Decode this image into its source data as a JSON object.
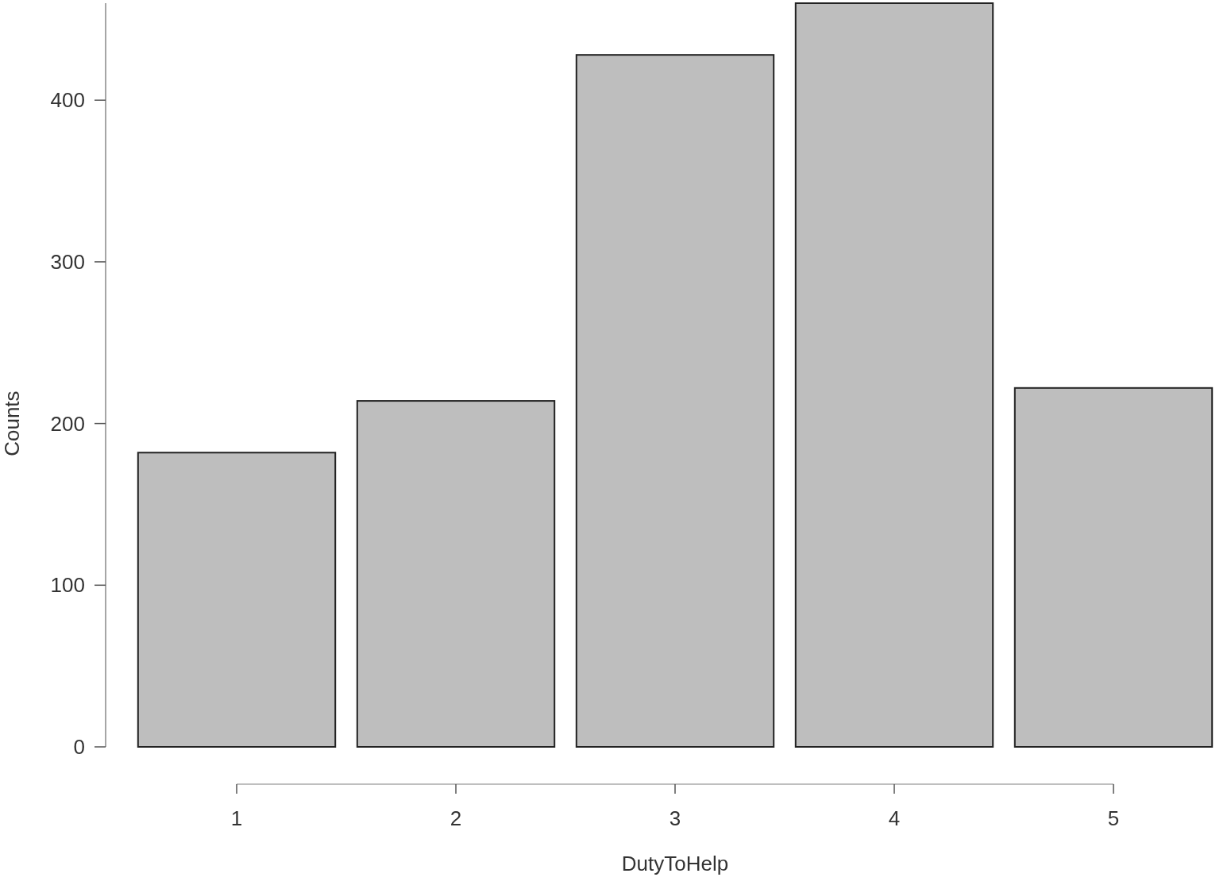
{
  "chart_data": {
    "type": "bar",
    "xlabel": "DutyToHelp",
    "ylabel": "Counts",
    "categories": [
      "1",
      "2",
      "3",
      "4",
      "5"
    ],
    "values": [
      182,
      214,
      428,
      460,
      222
    ],
    "color": "#bebebe",
    "ylim": [
      0,
      460
    ],
    "yticks": [
      0,
      100,
      200,
      300,
      400
    ]
  }
}
